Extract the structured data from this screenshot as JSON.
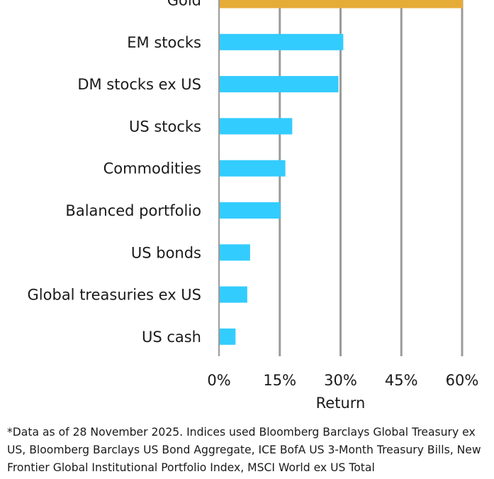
{
  "chart_data": {
    "type": "bar",
    "orientation": "horizontal",
    "categories": [
      "Gold",
      "EM stocks",
      "DM stocks ex US",
      "US stocks",
      "Commodities",
      "Balanced portfolio",
      "US bonds",
      "Global treasuries ex US",
      "US cash"
    ],
    "values": [
      60,
      30.5,
      29.3,
      17.9,
      16.2,
      15,
      7.5,
      6.8,
      3.9
    ],
    "bar_colors": [
      "#E6AC38",
      "#33CCFF",
      "#33CCFF",
      "#33CCFF",
      "#33CCFF",
      "#33CCFF",
      "#33CCFF",
      "#33CCFF",
      "#33CCFF"
    ],
    "gridline_color": "#9B9B9B",
    "xlim": [
      0,
      60
    ],
    "xticks": [
      0,
      15,
      30,
      45,
      60
    ],
    "xtick_labels": [
      "0%",
      "15%",
      "30%",
      "45%",
      "60%"
    ],
    "xlabel": "Return",
    "ylabel": "",
    "grid": true
  },
  "footnote": "*Data as of 28 November 2025. Indices used Bloomberg Barclays Global Treasury ex US, Bloomberg Barclays US Bond Aggregate, ICE BofA US 3-Month Treasury Bills, New Frontier Global Institutional Portfolio Index, MSCI World ex US Total"
}
